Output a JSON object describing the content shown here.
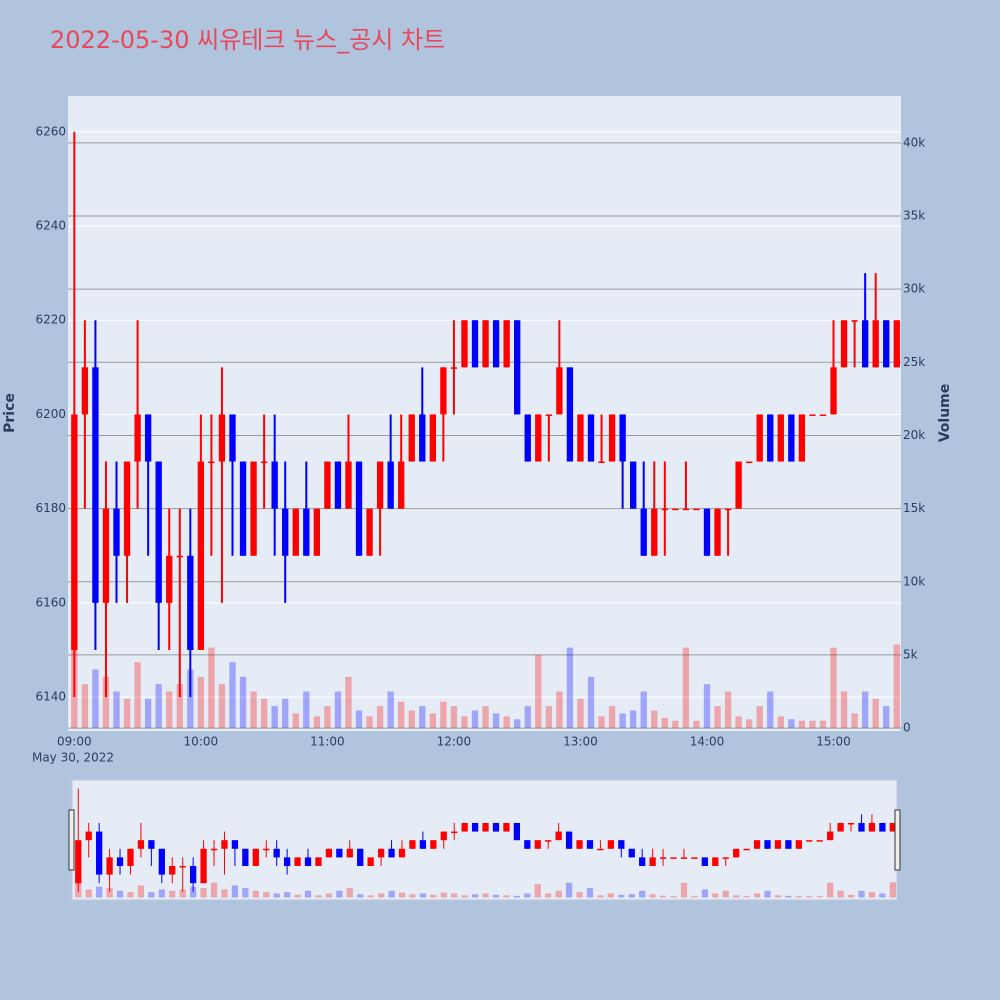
{
  "chart_data": {
    "type": "candlestick",
    "title": "2022-05-30 씨유테크 뉴스_공시 차트",
    "y_label": "Price",
    "y2_label": "Volume",
    "x_date_label": "May 30, 2022",
    "increasing_color": "#ff0000",
    "decreasing_color": "#0000ff",
    "grid": true,
    "rangeslider": true,
    "xlim": [
      "08:57",
      "15:32"
    ],
    "xticks": [
      "09:00",
      "10:00",
      "11:00",
      "12:00",
      "13:00",
      "14:00",
      "15:00"
    ],
    "ylim": [
      6132.8,
      6267.6
    ],
    "yticks": [
      6140,
      6160,
      6180,
      6200,
      6220,
      6240,
      6260
    ],
    "y2lim": [
      -200,
      43200
    ],
    "y2ticks": [
      0,
      {
        "value": 5000,
        "label": "5k"
      },
      {
        "value": 10000,
        "label": "10k"
      },
      {
        "value": 15000,
        "label": "15k"
      },
      {
        "value": 20000,
        "label": "20k"
      },
      {
        "value": 25000,
        "label": "25k"
      },
      {
        "value": 30000,
        "label": "30k"
      },
      {
        "value": 35000,
        "label": "35k"
      },
      {
        "value": 40000,
        "label": "40k"
      }
    ],
    "x": [
      "09:00",
      "09:05",
      "09:10",
      "09:15",
      "09:20",
      "09:25",
      "09:30",
      "09:35",
      "09:40",
      "09:45",
      "09:50",
      "09:55",
      "10:00",
      "10:05",
      "10:10",
      "10:15",
      "10:20",
      "10:25",
      "10:30",
      "10:35",
      "10:40",
      "10:45",
      "10:50",
      "10:55",
      "11:00",
      "11:05",
      "11:10",
      "11:15",
      "11:20",
      "11:25",
      "11:30",
      "11:35",
      "11:40",
      "11:45",
      "11:50",
      "11:55",
      "12:00",
      "12:05",
      "12:10",
      "12:15",
      "12:20",
      "12:25",
      "12:30",
      "12:35",
      "12:40",
      "12:45",
      "12:50",
      "12:55",
      "13:00",
      "13:05",
      "13:10",
      "13:15",
      "13:20",
      "13:25",
      "13:30",
      "13:35",
      "13:40",
      "13:45",
      "13:50",
      "13:55",
      "14:00",
      "14:05",
      "14:10",
      "14:15",
      "14:20",
      "14:25",
      "14:30",
      "14:35",
      "14:40",
      "14:45",
      "14:50",
      "14:55",
      "15:00",
      "15:05",
      "15:10",
      "15:15",
      "15:20",
      "15:25",
      "15:30"
    ],
    "open": [
      6150,
      6200,
      6210,
      6160,
      6180,
      6170,
      6190,
      6200,
      6190,
      6160,
      6170,
      6170,
      6150,
      6190,
      6190,
      6200,
      6190,
      6170,
      6190,
      6190,
      6180,
      6170,
      6180,
      6170,
      6180,
      6190,
      6180,
      6190,
      6170,
      6180,
      6190,
      6180,
      6190,
      6200,
      6190,
      6200,
      6210,
      6210,
      6220,
      6210,
      6220,
      6210,
      6220,
      6200,
      6190,
      6200,
      6200,
      6210,
      6190,
      6200,
      6190,
      6190,
      6200,
      6190,
      6180,
      6170,
      6180,
      6180,
      6180,
      6180,
      6180,
      6170,
      6180,
      6180,
      6190,
      6190,
      6200,
      6190,
      6200,
      6190,
      6200,
      6200,
      6200,
      6210,
      6220,
      6220,
      6210,
      6220,
      6210
    ],
    "high": [
      6260,
      6220,
      6220,
      6190,
      6190,
      6190,
      6220,
      6200,
      6190,
      6180,
      6180,
      6180,
      6200,
      6200,
      6210,
      6200,
      6190,
      6190,
      6200,
      6200,
      6190,
      6180,
      6190,
      6180,
      6190,
      6190,
      6200,
      6190,
      6180,
      6190,
      6200,
      6200,
      6200,
      6210,
      6200,
      6210,
      6220,
      6220,
      6220,
      6220,
      6220,
      6220,
      6220,
      6200,
      6200,
      6200,
      6220,
      6210,
      6200,
      6200,
      6200,
      6200,
      6200,
      6190,
      6190,
      6190,
      6190,
      6180,
      6190,
      6180,
      6180,
      6180,
      6180,
      6190,
      6190,
      6200,
      6200,
      6200,
      6200,
      6200,
      6200,
      6200,
      6220,
      6220,
      6220,
      6230,
      6230,
      6220,
      6220
    ],
    "low": [
      6140,
      6180,
      6150,
      6140,
      6160,
      6160,
      6180,
      6170,
      6150,
      6150,
      6140,
      6140,
      6150,
      6170,
      6160,
      6170,
      6170,
      6170,
      6180,
      6170,
      6160,
      6170,
      6170,
      6170,
      6180,
      6180,
      6180,
      6170,
      6170,
      6170,
      6180,
      6180,
      6190,
      6190,
      6190,
      6190,
      6200,
      6210,
      6210,
      6210,
      6210,
      6210,
      6200,
      6190,
      6190,
      6190,
      6200,
      6190,
      6190,
      6190,
      6190,
      6190,
      6180,
      6180,
      6170,
      6170,
      6170,
      6180,
      6180,
      6180,
      6170,
      6170,
      6170,
      6180,
      6190,
      6190,
      6190,
      6190,
      6190,
      6190,
      6200,
      6200,
      6200,
      6210,
      6210,
      6210,
      6210,
      6210,
      6210
    ],
    "close": [
      6200,
      6210,
      6160,
      6180,
      6170,
      6190,
      6200,
      6190,
      6160,
      6170,
      6170,
      6150,
      6190,
      6190,
      6200,
      6190,
      6170,
      6190,
      6190,
      6180,
      6170,
      6180,
      6170,
      6180,
      6190,
      6180,
      6190,
      6170,
      6180,
      6190,
      6180,
      6190,
      6200,
      6190,
      6200,
      6210,
      6210,
      6220,
      6210,
      6220,
      6210,
      6220,
      6200,
      6190,
      6200,
      6200,
      6210,
      6190,
      6200,
      6190,
      6190,
      6200,
      6190,
      6180,
      6170,
      6180,
      6180,
      6180,
      6180,
      6180,
      6170,
      6180,
      6180,
      6190,
      6190,
      6200,
      6190,
      6200,
      6190,
      6200,
      6200,
      6200,
      6210,
      6220,
      6220,
      6210,
      6220,
      6210,
      6220
    ],
    "volume": [
      6000,
      3000,
      4000,
      3500,
      2500,
      2000,
      4500,
      2000,
      3000,
      2500,
      3000,
      4000,
      3500,
      5500,
      3000,
      4500,
      3500,
      2500,
      2000,
      1500,
      2000,
      1000,
      2500,
      800,
      1500,
      2500,
      3500,
      1200,
      800,
      1500,
      2500,
      1800,
      1200,
      1500,
      1000,
      1800,
      1500,
      800,
      1200,
      1500,
      1000,
      800,
      600,
      1500,
      5000,
      1500,
      2500,
      5500,
      2000,
      3500,
      800,
      1500,
      1000,
      1200,
      2500,
      1200,
      700,
      500,
      5500,
      500,
      3000,
      1500,
      2500,
      800,
      600,
      1500,
      2500,
      800,
      600,
      500,
      500,
      500,
      5500,
      2500,
      1000,
      2500,
      2000,
      1500,
      5700
    ]
  }
}
